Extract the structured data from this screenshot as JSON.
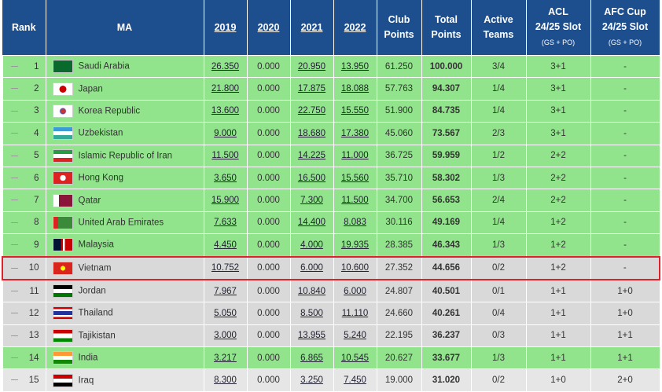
{
  "header": {
    "columns": [
      {
        "lines": [
          "Rank"
        ]
      },
      {
        "lines": [
          "MA"
        ]
      },
      {
        "lines": [
          "2019"
        ],
        "link": true
      },
      {
        "lines": [
          "2020"
        ],
        "link": true
      },
      {
        "lines": [
          "2021"
        ],
        "link": true
      },
      {
        "lines": [
          "2022"
        ],
        "link": true
      },
      {
        "lines": [
          "Club",
          "Points"
        ]
      },
      {
        "lines": [
          "Total",
          "Points"
        ]
      },
      {
        "lines": [
          "Active",
          "Teams"
        ]
      },
      {
        "lines": [
          "ACL",
          "24/25 Slot",
          "(GS + PO)"
        ]
      },
      {
        "lines": [
          "AFC Cup",
          "24/25 Slot",
          "(GS + PO)"
        ]
      }
    ]
  },
  "rows": [
    {
      "color": "#92e48c",
      "cells": [
        "1",
        "Saudi Arabia",
        "26.350",
        "0.000",
        "20.950",
        "13.950",
        "61.250",
        "100.000",
        "3/4",
        "3+1",
        "-"
      ]
    },
    {
      "color": "#92e48c",
      "cells": [
        "2",
        "Japan",
        "21.800",
        "0.000",
        "17.875",
        "18.088",
        "57.763",
        "94.307",
        "1/4",
        "3+1",
        "-"
      ]
    },
    {
      "color": "#92e48c",
      "cells": [
        "3",
        "Korea Republic",
        "13.600",
        "0.000",
        "22.750",
        "15.550",
        "51.900",
        "84.735",
        "1/4",
        "3+1",
        "-"
      ]
    },
    {
      "color": "#92e48c",
      "cells": [
        "4",
        "Uzbekistan",
        "9.000",
        "0.000",
        "18.680",
        "17.380",
        "45.060",
        "73.567",
        "2/3",
        "3+1",
        "-"
      ]
    },
    {
      "color": "#92e48c",
      "cells": [
        "5",
        "Islamic Republic of Iran",
        "11.500",
        "0.000",
        "14.225",
        "11.000",
        "36.725",
        "59.959",
        "1/2",
        "2+2",
        "-"
      ]
    },
    {
      "color": "#92e48c",
      "cells": [
        "6",
        "Hong Kong",
        "3.650",
        "0.000",
        "16.500",
        "15.560",
        "35.710",
        "58.302",
        "1/3",
        "2+2",
        "-"
      ]
    },
    {
      "color": "#92e48c",
      "cells": [
        "7",
        "Qatar",
        "15.900",
        "0.000",
        "7.300",
        "11.500",
        "34.700",
        "56.653",
        "2/4",
        "2+2",
        "-"
      ]
    },
    {
      "color": "#92e48c",
      "cells": [
        "8",
        "United Arab Emirates",
        "7.633",
        "0.000",
        "14.400",
        "8.083",
        "30.116",
        "49.169",
        "1/4",
        "1+2",
        "-"
      ]
    },
    {
      "color": "#92e48c",
      "cells": [
        "9",
        "Malaysia",
        "4.450",
        "0.000",
        "4.000",
        "19.935",
        "28.385",
        "46.343",
        "1/3",
        "1+2",
        "-"
      ]
    },
    {
      "color": "#d9d9d9",
      "highlight": true,
      "cells": [
        "10",
        "Vietnam",
        "10.752",
        "0.000",
        "6.000",
        "10.600",
        "27.352",
        "44.656",
        "0/2",
        "1+2",
        "-"
      ]
    },
    {
      "color": "#d9d9d9",
      "cells": [
        "11",
        "Jordan",
        "7.967",
        "0.000",
        "10.840",
        "6.000",
        "24.807",
        "40.501",
        "0/1",
        "1+1",
        "1+0"
      ]
    },
    {
      "color": "#d9d9d9",
      "cells": [
        "12",
        "Thailand",
        "5.050",
        "0.000",
        "8.500",
        "11.110",
        "24.660",
        "40.261",
        "0/4",
        "1+1",
        "1+0"
      ]
    },
    {
      "color": "#d9d9d9",
      "cells": [
        "13",
        "Tajikistan",
        "3.000",
        "0.000",
        "13.955",
        "5.240",
        "22.195",
        "36.237",
        "0/3",
        "1+1",
        "1+1"
      ]
    },
    {
      "color": "#92e48c",
      "cells": [
        "14",
        "India",
        "3.217",
        "0.000",
        "6.865",
        "10.545",
        "20.627",
        "33.677",
        "1/3",
        "1+1",
        "1+1"
      ]
    },
    {
      "color": "#e6e6e6",
      "cells": [
        "15",
        "Iraq",
        "8.300",
        "0.000",
        "3.250",
        "7.450",
        "19.000",
        "31.020",
        "0/2",
        "1+0",
        "2+0"
      ]
    }
  ]
}
